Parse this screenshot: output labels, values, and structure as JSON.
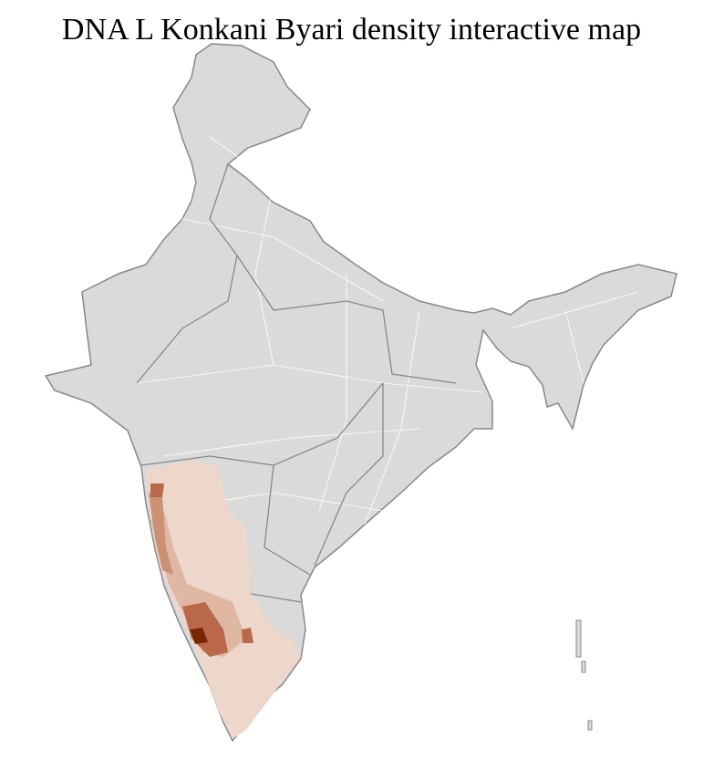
{
  "title": "DNA L Konkani Byari density interactive map",
  "map": {
    "region": "India",
    "type": "choropleth",
    "colors": {
      "no_data": "#dadada",
      "district_border": "#ffffff",
      "state_border": "#888888",
      "level_1": "#edd6ca",
      "level_2": "#dfb7a3",
      "level_3": "#cc9074",
      "level_4": "#b9684a",
      "level_5": "#7a2600"
    }
  }
}
